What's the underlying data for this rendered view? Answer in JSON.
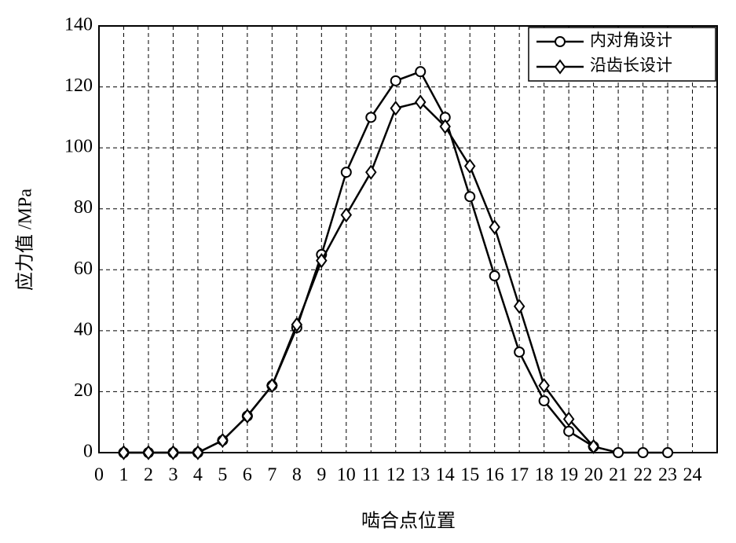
{
  "chart_data": {
    "type": "line",
    "y_label": "应力值 /MPa",
    "x_label": "啮合点位置",
    "x": [
      1,
      2,
      3,
      4,
      5,
      6,
      7,
      8,
      9,
      10,
      11,
      12,
      13,
      14,
      15,
      16,
      17,
      18,
      19,
      20,
      21,
      22,
      23
    ],
    "series": [
      {
        "name": "内对角设计",
        "color": "#000000",
        "marker": "circle",
        "values": [
          0,
          0,
          0,
          0,
          4,
          12,
          22,
          41,
          65,
          92,
          110,
          122,
          125,
          110,
          84,
          58,
          33,
          17,
          7,
          2,
          0,
          0,
          0
        ]
      },
      {
        "name": "沿齿长设计",
        "color": "#000000",
        "marker": "diamond",
        "values": [
          0,
          0,
          0,
          0,
          4,
          12,
          22,
          42,
          63,
          78,
          92,
          113,
          115,
          107,
          94,
          74,
          48,
          22,
          11,
          2,
          null,
          null,
          null
        ]
      }
    ],
    "xlim": [
      0,
      25
    ],
    "xticks": [
      0,
      1,
      2,
      3,
      4,
      5,
      6,
      7,
      8,
      9,
      10,
      11,
      12,
      13,
      14,
      15,
      16,
      17,
      18,
      19,
      20,
      21,
      22,
      23,
      24
    ],
    "ylim": [
      0,
      140
    ],
    "yticks": [
      0,
      20,
      40,
      60,
      80,
      100,
      120,
      140
    ],
    "grid": true,
    "legend": "upper right"
  }
}
